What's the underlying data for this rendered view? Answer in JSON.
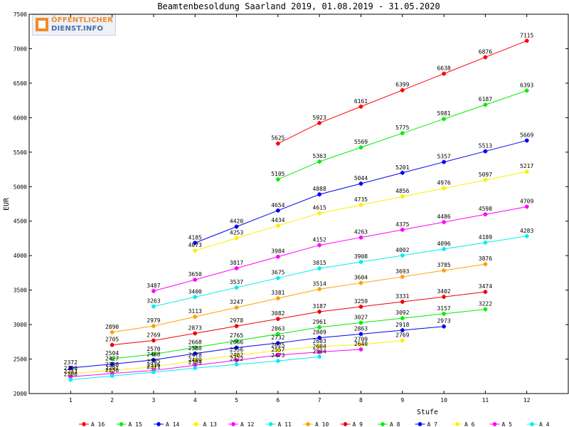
{
  "logo": {
    "line1": "ÖFFENTLICHER",
    "line2": "DIENST.INFO"
  },
  "chart_data": {
    "type": "line",
    "title": "Beamtenbesoldung Saarland 2019, 01.08.2019 - 31.05.2020",
    "xlabel": "Stufe",
    "ylabel": "EUR",
    "x": [
      1,
      2,
      3,
      4,
      5,
      6,
      7,
      8,
      9,
      10,
      11,
      12
    ],
    "ylim": [
      2000,
      7500
    ],
    "yticks": [
      2000,
      2500,
      3000,
      3500,
      4000,
      4500,
      5000,
      5500,
      6000,
      6500,
      7000,
      7500
    ],
    "legend_position": "bottom",
    "series": [
      {
        "name": "A_16",
        "color": "#ff0000",
        "values": [
          null,
          null,
          null,
          null,
          null,
          5625,
          5923,
          6161,
          6399,
          6638,
          6876,
          7115
        ]
      },
      {
        "name": "A_15",
        "color": "#00ee00",
        "values": [
          null,
          null,
          null,
          null,
          null,
          5105,
          5363,
          5569,
          5775,
          5981,
          6187,
          6393
        ]
      },
      {
        "name": "A_14",
        "color": "#0000ee",
        "values": [
          null,
          null,
          null,
          4185,
          4420,
          4654,
          4888,
          5044,
          5201,
          5357,
          5513,
          5669
        ]
      },
      {
        "name": "A_13",
        "color": "#ffee00",
        "values": [
          null,
          null,
          null,
          4073,
          4253,
          4434,
          4615,
          4735,
          4856,
          4976,
          5097,
          5217
        ]
      },
      {
        "name": "A_12",
        "color": "#ff00ff",
        "values": [
          null,
          null,
          3487,
          3650,
          3817,
          3984,
          4152,
          4263,
          4375,
          4486,
          4598,
          4709
        ]
      },
      {
        "name": "A_11",
        "color": "#00eeee",
        "values": [
          null,
          null,
          3263,
          3400,
          3537,
          3675,
          3815,
          3908,
          4002,
          4096,
          4189,
          4283
        ]
      },
      {
        "name": "A_10",
        "color": "#ffa000",
        "values": [
          null,
          2890,
          2979,
          3113,
          3247,
          3381,
          3514,
          3604,
          3693,
          3785,
          3876,
          null
        ]
      },
      {
        "name": "A_9",
        "color": "#ee0000",
        "values": [
          null,
          2705,
          2769,
          2873,
          2978,
          3082,
          3187,
          3259,
          3331,
          3402,
          3474,
          null
        ]
      },
      {
        "name": "A_8",
        "color": "#00ee00",
        "values": [
          null,
          2504,
          2570,
          2668,
          2765,
          2863,
          2961,
          3027,
          3092,
          3157,
          3222,
          null
        ]
      },
      {
        "name": "A_7",
        "color": "#0000ee",
        "values": [
          2372,
          2427,
          2488,
          2580,
          2666,
          2732,
          2809,
          2863,
          2918,
          2973,
          null,
          null
        ]
      },
      {
        "name": "A_6",
        "color": "#ffee00",
        "values": [
          2290,
          2338,
          2385,
          2478,
          2556,
          2625,
          2683,
          2709,
          2769,
          null,
          null,
          null
        ]
      },
      {
        "name": "A_5",
        "color": "#ff00ff",
        "values": [
          2243,
          2291,
          2336,
          2409,
          2482,
          2557,
          2604,
          2640,
          null,
          null,
          null,
          null
        ]
      },
      {
        "name": "A_4",
        "color": "#00eeee",
        "values": [
          2200,
          2256,
          2311,
          2369,
          2422,
          2473,
          2534,
          null,
          null,
          null,
          null,
          null
        ]
      }
    ]
  }
}
